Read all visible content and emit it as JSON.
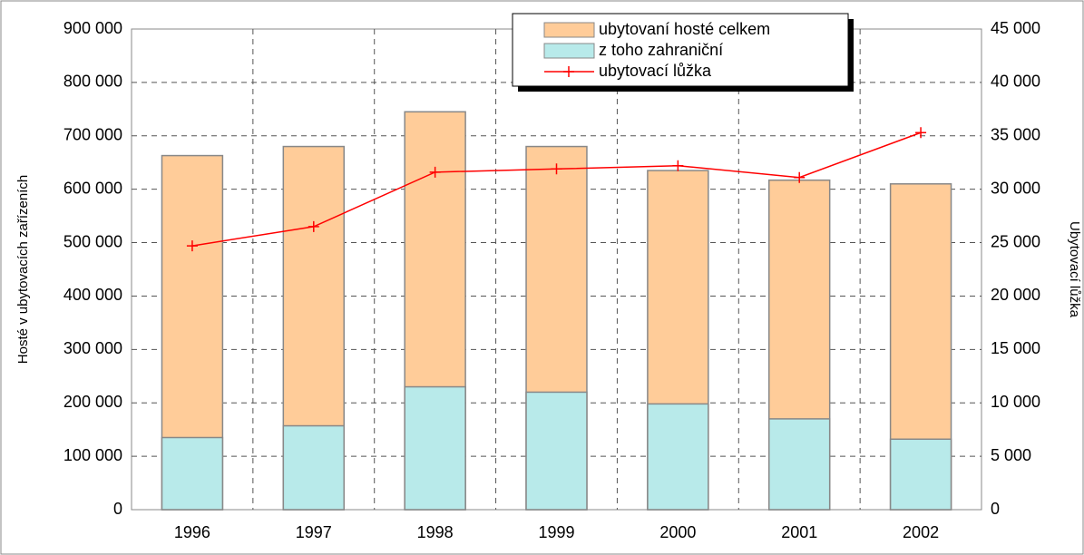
{
  "chart_data": {
    "type": "bar",
    "y_label": "Hosté v ubytovacích zařízeních",
    "y2_label": "Ubytovací lůžka",
    "categories": [
      "1996",
      "1997",
      "1998",
      "1999",
      "2000",
      "2001",
      "2002"
    ],
    "series": [
      {
        "name": "ubytovaní hosté celkem",
        "color": "#ffcc99",
        "values": [
          663000,
          680000,
          745000,
          680000,
          635000,
          617000,
          610000
        ]
      },
      {
        "name": "z toho zahraniční",
        "color": "#b8eaea",
        "values": [
          135000,
          157000,
          230000,
          220000,
          198000,
          170000,
          132000
        ]
      },
      {
        "name": "ubytovací lůžka",
        "type": "line",
        "axis": "y2",
        "color": "#ff0000",
        "values": [
          24700,
          26500,
          31600,
          31900,
          32200,
          31100,
          35300
        ]
      }
    ],
    "ylim": [
      0,
      900000
    ],
    "yticks": [
      0,
      {
        "value": 100000,
        "label": "100 000"
      },
      {
        "value": 200000,
        "label": "200 000"
      },
      {
        "value": 300000,
        "label": "300 000"
      },
      {
        "value": 400000,
        "label": "400 000"
      },
      {
        "value": 500000,
        "label": "500 000"
      },
      {
        "value": 600000,
        "label": "600 000"
      },
      {
        "value": 700000,
        "label": "700 000"
      },
      {
        "value": 800000,
        "label": "800 000"
      },
      {
        "value": 900000,
        "label": "900 000"
      }
    ],
    "y2lim": [
      0,
      45000
    ],
    "y2ticks": [
      0,
      {
        "value": 5000,
        "label": "5 000"
      },
      {
        "value": 10000,
        "label": "10 000"
      },
      {
        "value": 15000,
        "label": "15 000"
      },
      {
        "value": 20000,
        "label": "20 000"
      },
      {
        "value": 25000,
        "label": "25 000"
      },
      {
        "value": 30000,
        "label": "30 000"
      },
      {
        "value": 35000,
        "label": "35 000"
      },
      {
        "value": 40000,
        "label": "40 000"
      },
      {
        "value": 45000,
        "label": "45 000"
      }
    ],
    "grid": true,
    "legend": "top"
  }
}
